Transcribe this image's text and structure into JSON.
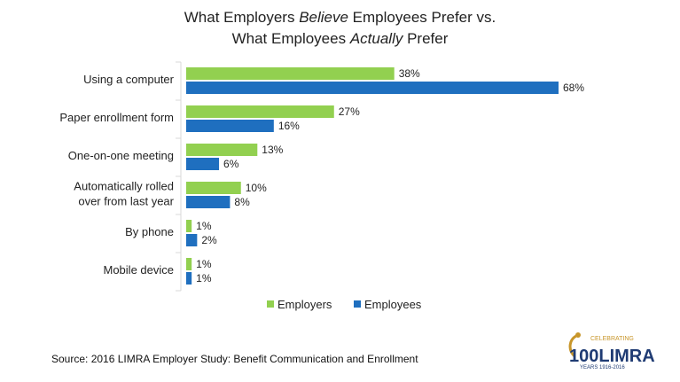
{
  "title": {
    "line1_parts": [
      "What Employers ",
      "Believe",
      " Employees Prefer vs."
    ],
    "line2_parts": [
      "What Employees ",
      "Actually",
      " Prefer"
    ]
  },
  "chart_data": {
    "type": "bar",
    "orientation": "horizontal",
    "categories": [
      [
        "Using a computer"
      ],
      [
        "Paper enrollment form"
      ],
      [
        "One-on-one meeting"
      ],
      [
        "Automatically rolled",
        "over from last year"
      ],
      [
        "By phone"
      ],
      [
        "Mobile device"
      ]
    ],
    "series": [
      {
        "name": "Employers",
        "color": "#92d050",
        "values": [
          38,
          27,
          13,
          10,
          1,
          1
        ]
      },
      {
        "name": "Employees",
        "color": "#1f6fbf",
        "values": [
          68,
          16,
          6,
          8,
          2,
          1
        ]
      }
    ],
    "value_suffix": "%",
    "xlim": [
      0,
      100
    ],
    "grid": false,
    "legend": "bottom-center"
  },
  "source": "Source: 2016 LIMRA Employer Study: Benefit Communication and Enrollment",
  "logo": {
    "top_text": "CELEBRATING",
    "main_text": "100LIMRA",
    "bottom_text": "YEARS 1916-2016"
  }
}
